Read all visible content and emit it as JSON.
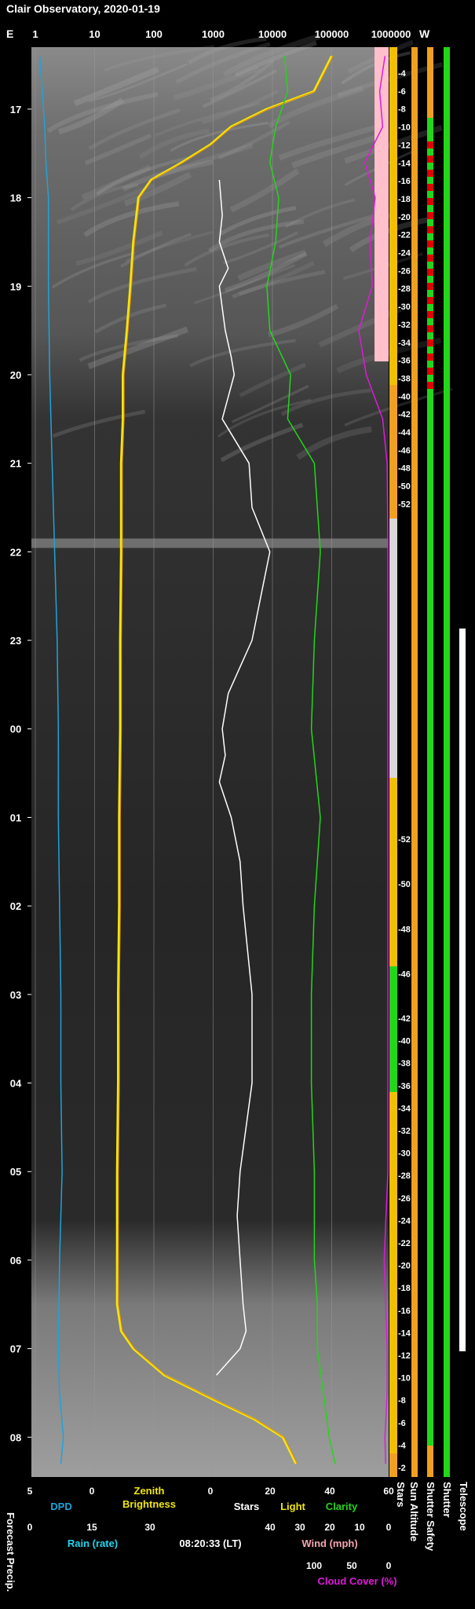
{
  "header": {
    "title": "Clair Observatory, 2020-01-19",
    "compass_left": "E",
    "compass_right": "W"
  },
  "colors": {
    "dpd": "#1fa3d9",
    "brightness": "#f2e60d",
    "stars": "#ffffff",
    "clarity": "#22d61a",
    "cloud": "#e01ad9",
    "sun": "#f0a020",
    "rain": "#22d3ee",
    "wind": "#f4a6b0",
    "pink_band": "#ffc0cb"
  },
  "chart_data": {
    "type": "line",
    "title": "Clair Observatory, 2020-01-19",
    "top_axis_ticks": [
      "1",
      "10",
      "100",
      "1000",
      "10000",
      "100000",
      "1000000"
    ],
    "time_ticks": [
      "17",
      "18",
      "19",
      "20",
      "21",
      "22",
      "23",
      "00",
      "01",
      "02",
      "03",
      "04",
      "05",
      "06",
      "07",
      "08"
    ],
    "sun_altitude_ticks": [
      "-4",
      "-6",
      "-8",
      "-10",
      "-12",
      "-14",
      "-16",
      "-18",
      "-20",
      "-22",
      "-24",
      "-26",
      "-28",
      "-30",
      "-32",
      "-34",
      "-36",
      "-38",
      "-40",
      "-42",
      "-44",
      "-46",
      "-48",
      "-50",
      "-52",
      "-52",
      "-50",
      "-48",
      "-46",
      "-42",
      "-40",
      "-38",
      "-36",
      "-34",
      "-32",
      "-30",
      "-28",
      "-26",
      "-24",
      "-22",
      "-20",
      "-18",
      "-16",
      "-14",
      "-12",
      "-10",
      "-8",
      "-6",
      "-4",
      "-2"
    ],
    "time_range_hours": [
      16.3,
      8.45
    ],
    "series": [
      {
        "name": "Zenith Brightness",
        "color": "#f2e60d",
        "x": [
          16.4,
          16.8,
          17.0,
          17.2,
          17.4,
          17.6,
          17.8,
          18.0,
          18.5,
          19.0,
          19.5,
          20.0,
          20.5,
          21.0,
          22.0,
          23.0,
          0.0,
          1.0,
          2.0,
          3.0,
          4.0,
          5.0,
          6.0,
          6.5,
          6.8,
          7.0,
          7.3,
          7.6,
          7.8,
          8.0,
          8.3
        ],
        "y": [
          100000,
          50000,
          8000,
          2000,
          900,
          300,
          90,
          55,
          45,
          40,
          35,
          30,
          30,
          28,
          28,
          27,
          27,
          26,
          26,
          25,
          25,
          24,
          24,
          24,
          28,
          45,
          150,
          1200,
          5000,
          15000,
          25000
        ]
      },
      {
        "name": "Stars",
        "x": [
          17.8,
          18.2,
          18.5,
          18.8,
          19.0,
          19.5,
          19.8,
          20.0,
          20.5,
          21.0,
          21.5,
          22.0,
          22.5,
          23.0,
          23.3,
          23.6,
          0.0,
          0.3,
          0.6,
          1.0,
          1.5,
          2.0,
          3.0,
          4.0,
          5.0,
          5.5,
          6.0,
          6.5,
          6.8,
          7.0,
          7.3
        ],
        "y": [
          3,
          4,
          3,
          6,
          3,
          5,
          7,
          8,
          4,
          13,
          14,
          20,
          17,
          14,
          10,
          6,
          4,
          5,
          3,
          7,
          10,
          11,
          14,
          14,
          10,
          9,
          10,
          11,
          12,
          10,
          2
        ]
      },
      {
        "name": "Clarity",
        "x": [
          16.4,
          16.8,
          17.2,
          17.6,
          18.0,
          18.5,
          19.0,
          19.5,
          20.0,
          20.5,
          21.0,
          21.5,
          22.0,
          22.5,
          23.0,
          0.0,
          1.0,
          2.0,
          3.0,
          4.0,
          5.0,
          6.0,
          6.5,
          7.0,
          7.5,
          8.0,
          8.3
        ],
        "y": [
          25,
          26,
          22,
          20,
          23,
          22,
          19,
          20,
          27,
          26,
          35,
          36,
          37,
          36,
          35,
          34,
          37,
          35,
          34,
          34,
          35,
          35,
          36,
          36,
          38,
          40,
          42
        ]
      },
      {
        "name": "Cloud Cover (%)",
        "color": "#e01ad9",
        "x": [
          16.4,
          16.8,
          17.2,
          17.6,
          18.0,
          18.5,
          19.0,
          19.5,
          20.0,
          20.5,
          21.0,
          22.0,
          23.0,
          0.0,
          1.0,
          2.0,
          3.0,
          4.0,
          5.0,
          6.0,
          6.5,
          7.0,
          7.5,
          8.0,
          8.3
        ],
        "y": [
          5,
          12,
          8,
          32,
          18,
          25,
          22,
          40,
          30,
          8,
          2,
          1,
          1,
          1,
          1,
          1,
          1,
          1,
          1,
          6,
          4,
          2,
          2,
          5,
          4
        ]
      },
      {
        "name": "DPD",
        "color": "#1fa3d9",
        "x": [
          16.4,
          16.8,
          17.2,
          17.6,
          18.0,
          19.0,
          20.0,
          21.0,
          22.0,
          23.0,
          0.0,
          1.0,
          2.0,
          3.0,
          4.0,
          5.0,
          6.0,
          7.0,
          7.5,
          8.0,
          8.3
        ],
        "y": [
          4.2,
          4.0,
          3.8,
          3.7,
          3.5,
          3.5,
          3.4,
          3.2,
          3.0,
          2.8,
          2.7,
          2.7,
          2.6,
          2.5,
          2.5,
          2.4,
          2.6,
          2.7,
          2.6,
          2.3,
          2.5
        ]
      }
    ]
  },
  "bottom_axes": {
    "dpd": {
      "label": "DPD",
      "ticks": [
        "5",
        "0"
      ]
    },
    "brightness": {
      "label_line1": "Zenith",
      "label_line2": "Brightness"
    },
    "stars": {
      "label": "Stars",
      "ticks": [
        "0",
        "20",
        "40",
        "60"
      ]
    },
    "light": {
      "label": "Light"
    },
    "clarity": {
      "label": "Clarity"
    },
    "rain": {
      "label": "Rain (rate)",
      "ticks": [
        "0",
        "15",
        "30"
      ]
    },
    "time": {
      "label": "08:20:33 (LT)"
    },
    "wind": {
      "label": "Wind (mph)",
      "ticks": [
        "40",
        "30",
        "20",
        "10",
        "0"
      ]
    },
    "cloud": {
      "label": "Cloud Cover (%)",
      "ticks": [
        "100",
        "50",
        "0"
      ]
    },
    "forecast": {
      "label": "Forecast Precip."
    }
  },
  "side_labels": [
    "Stars",
    "Sun Altitude",
    "Shutter Safety",
    "Shutter",
    "Telescope"
  ]
}
